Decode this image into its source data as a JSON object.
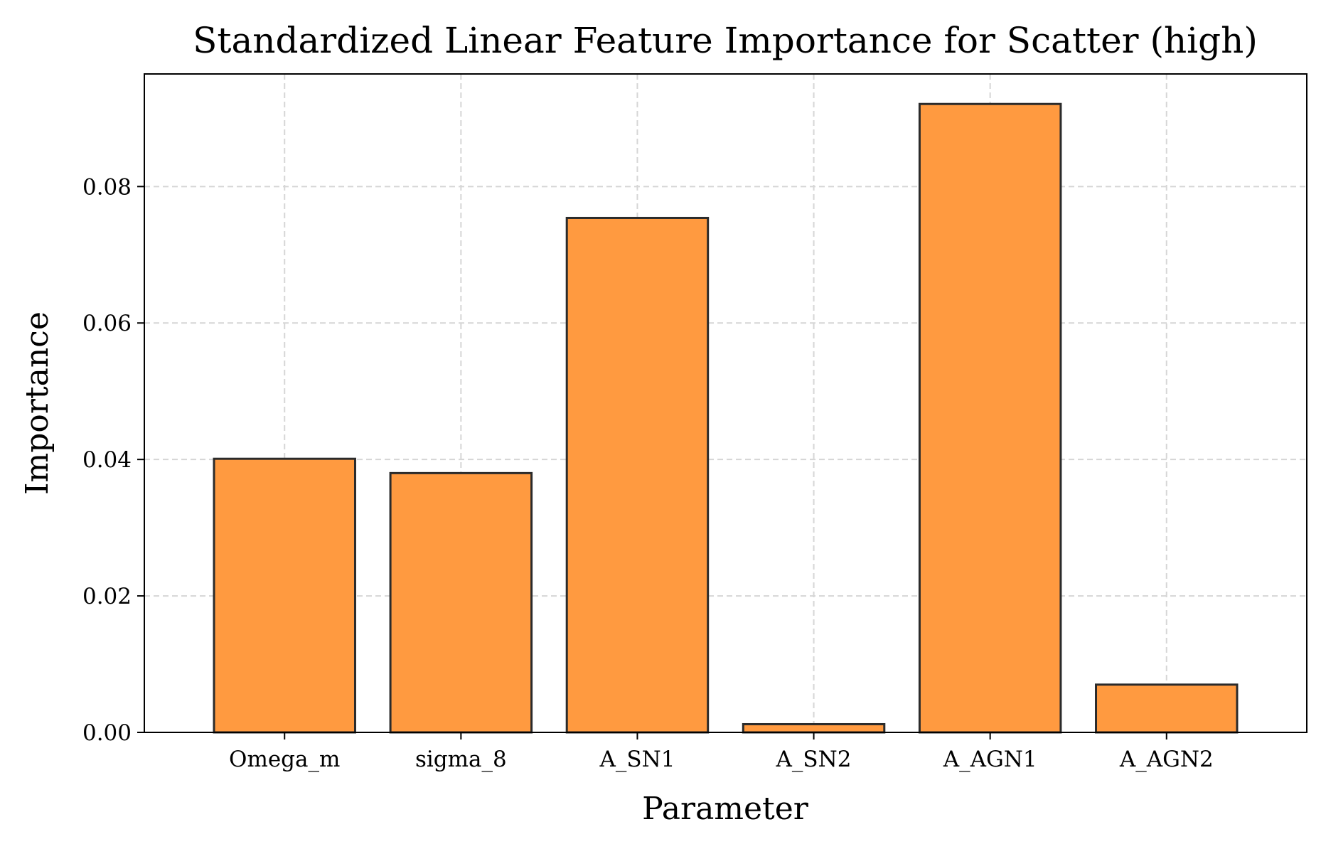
{
  "chart_data": {
    "type": "bar",
    "title": "Standardized Linear Feature Importance for Scatter (high)",
    "xlabel": "Parameter",
    "ylabel": "Importance",
    "categories": [
      "Omega_m",
      "sigma_8",
      "A_SN1",
      "A_SN2",
      "A_AGN1",
      "A_AGN2"
    ],
    "values": [
      0.0401,
      0.038,
      0.0754,
      0.0012,
      0.0921,
      0.007
    ],
    "ylim": [
      0,
      0.0965
    ],
    "yticks": [
      0.0,
      0.02,
      0.04,
      0.06,
      0.08
    ],
    "ytick_labels": [
      "0.00",
      "0.02",
      "0.04",
      "0.06",
      "0.08"
    ],
    "grid": true,
    "bar_color": "#ff9a40",
    "edge_color": "#2b2b2b",
    "grid_color": "#d6d6d6"
  }
}
